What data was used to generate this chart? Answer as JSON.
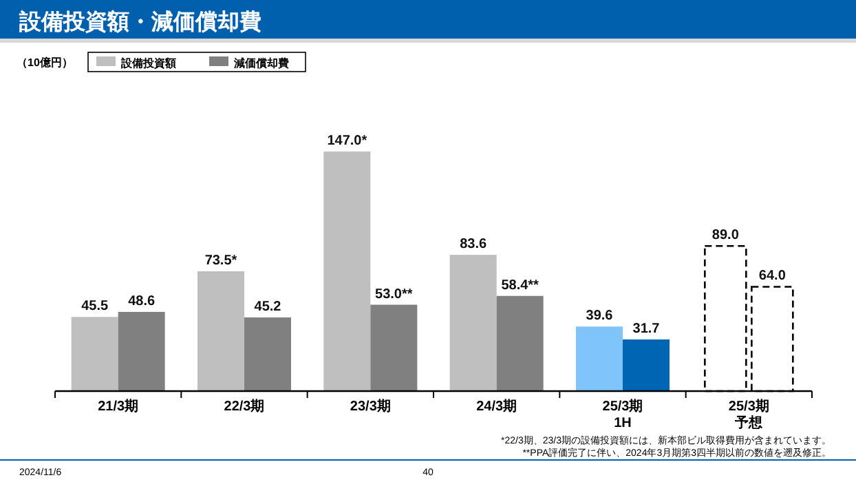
{
  "chart_data": {
    "type": "bar",
    "title": "設備投資額・減価償却費",
    "legend": "top left",
    "categories": [
      "21/3期",
      "22/3期",
      "23/3期",
      "24/3期",
      "25/3期 1H",
      "25/3期予想"
    ],
    "series": [
      {
        "name": "設備投資額",
        "color": "#bfbfbf",
        "colors": [
          "#bfbfbf",
          "#bfbfbf",
          "#bfbfbf",
          "#bfbfbf",
          "#7fc4fb",
          "#ffffff"
        ],
        "values": [
          45.5,
          73.5,
          147.0,
          83.6,
          39.6,
          89.0
        ],
        "value_labels": [
          "45.5",
          "73.5*",
          "147.0*",
          "83.6",
          "39.6",
          "89.0"
        ]
      },
      {
        "name": "減価償却費",
        "color": "#808080",
        "colors": [
          "#808080",
          "#808080",
          "#808080",
          "#808080",
          "#0066b3",
          "#ffffff"
        ],
        "values": [
          48.6,
          45.2,
          53.0,
          58.4,
          31.7,
          64.0
        ],
        "value_labels": [
          "48.6",
          "45.2",
          "53.0**",
          "58.4**",
          "31.7",
          "64.0"
        ]
      }
    ],
    "annotations": [
      "（10億円）",
      "*22/3期、23/3期の設備投資額には、新本部ビル取得費用が含まれています。",
      "**PPA評価完了に伴い、2024年3月期第3四半期以前の数値を遡及修正。",
      "2024/11/6",
      "40"
    ]
  }
}
